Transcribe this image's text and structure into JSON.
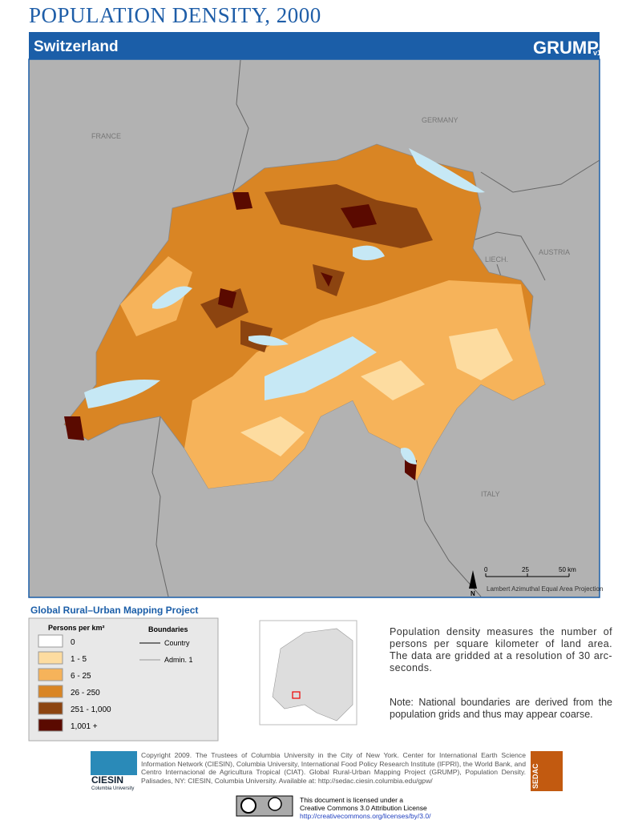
{
  "title": "POPULATION DENSITY, 2000",
  "country": "Switzerland",
  "logo": "GRUMP",
  "logo_version": "v1",
  "map_labels": [
    "FRANCE",
    "GERMANY",
    "AUSTRIA",
    "LIECH.",
    "ITALY"
  ],
  "scale": {
    "ticks": [
      "0",
      "25",
      "50 km"
    ],
    "north": "N",
    "projection": "Lambert Azimuthal Equal Area Projection"
  },
  "project": "Global Rural–Urban Mapping Project",
  "legend": {
    "title": "Persons per km²",
    "classes": [
      {
        "label": "0",
        "color": "#ffffff"
      },
      {
        "label": "1 - 5",
        "color": "#fddca0"
      },
      {
        "label": "6 - 25",
        "color": "#f6b35a"
      },
      {
        "label": "26 - 250",
        "color": "#d98524"
      },
      {
        "label": "251 - 1,000",
        "color": "#8c4410"
      },
      {
        "label": "1,001 +",
        "color": "#5a0a00"
      }
    ],
    "boundaries_title": "Boundaries",
    "boundaries": [
      "Country",
      "Admin. 1"
    ]
  },
  "description": "Population density measures the number of persons per square kilometer of land area. The data are gridded at a resolution of 30 arc-seconds.",
  "note": "Note: National boundaries are derived from the population grids and thus may appear coarse.",
  "copyright": "Copyright 2009. The Trustees of Columbia University in the City of New York. Center for International Earth Science Information Network (CIESIN), Columbia University, International Food Policy Research Institute (IFPRI), the World Bank, and Centro Internacional de Agricultura Tropical (CIAT). Global Rural-Urban Mapping Project (GRUMP), Population Density. Palisades, NY: CIESIN, Columbia University. Available at: http://sedac.ciesin.columbia.edu/gpw/",
  "license": [
    "This document is licensed under a",
    "Creative Commons 3.0 Attribution License",
    "http://creativecommons.org/licenses/by/3.0/"
  ],
  "ciesin": "CIESIN",
  "ciesin_sub": "Columbia University",
  "sedac": "SEDAC"
}
